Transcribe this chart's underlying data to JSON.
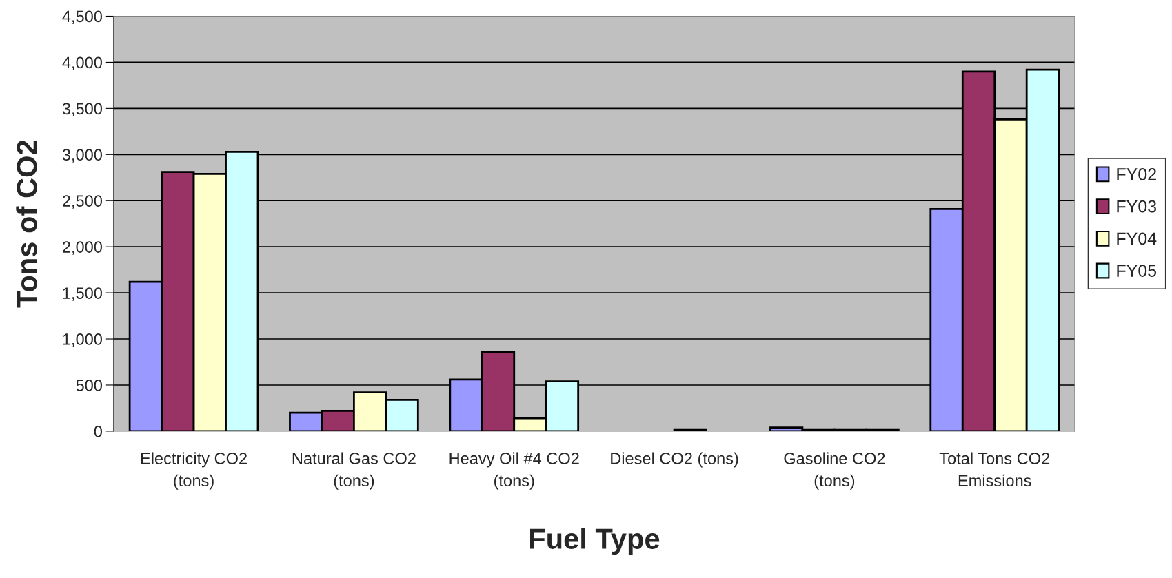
{
  "chart_data": {
    "type": "bar",
    "xlabel": "Fuel Type",
    "ylabel": "Tons of CO2",
    "categories": [
      "Electricity CO2\n(tons)",
      "Natural Gas CO2\n(tons)",
      "Heavy Oil #4 CO2\n(tons)",
      "Diesel CO2 (tons)",
      "Gasoline CO2\n(tons)",
      "Total Tons CO2\nEmissions"
    ],
    "series": [
      {
        "name": "FY02",
        "color": "#9999ff",
        "values": [
          1620,
          200,
          560,
          null,
          40,
          2410
        ]
      },
      {
        "name": "FY03",
        "color": "#993366",
        "values": [
          2810,
          220,
          860,
          null,
          20,
          3900
        ]
      },
      {
        "name": "FY04",
        "color": "#ffffcc",
        "values": [
          2790,
          420,
          140,
          20,
          20,
          3380
        ]
      },
      {
        "name": "FY05",
        "color": "#ccffff",
        "values": [
          3030,
          340,
          540,
          null,
          20,
          3920
        ]
      }
    ],
    "ylim": [
      0,
      4500
    ],
    "yticks": [
      {
        "value": 0,
        "label": "0"
      },
      {
        "value": 500,
        "label": "500"
      },
      {
        "value": 1000,
        "label": "1,000"
      },
      {
        "value": 1500,
        "label": "1,500"
      },
      {
        "value": 2000,
        "label": "2,000"
      },
      {
        "value": 2500,
        "label": "2,500"
      },
      {
        "value": 3000,
        "label": "3,000"
      },
      {
        "value": 3500,
        "label": "3,500"
      },
      {
        "value": 4000,
        "label": "4,000"
      },
      {
        "value": 4500,
        "label": "4,500"
      }
    ],
    "grid": "y",
    "legend": "right"
  }
}
